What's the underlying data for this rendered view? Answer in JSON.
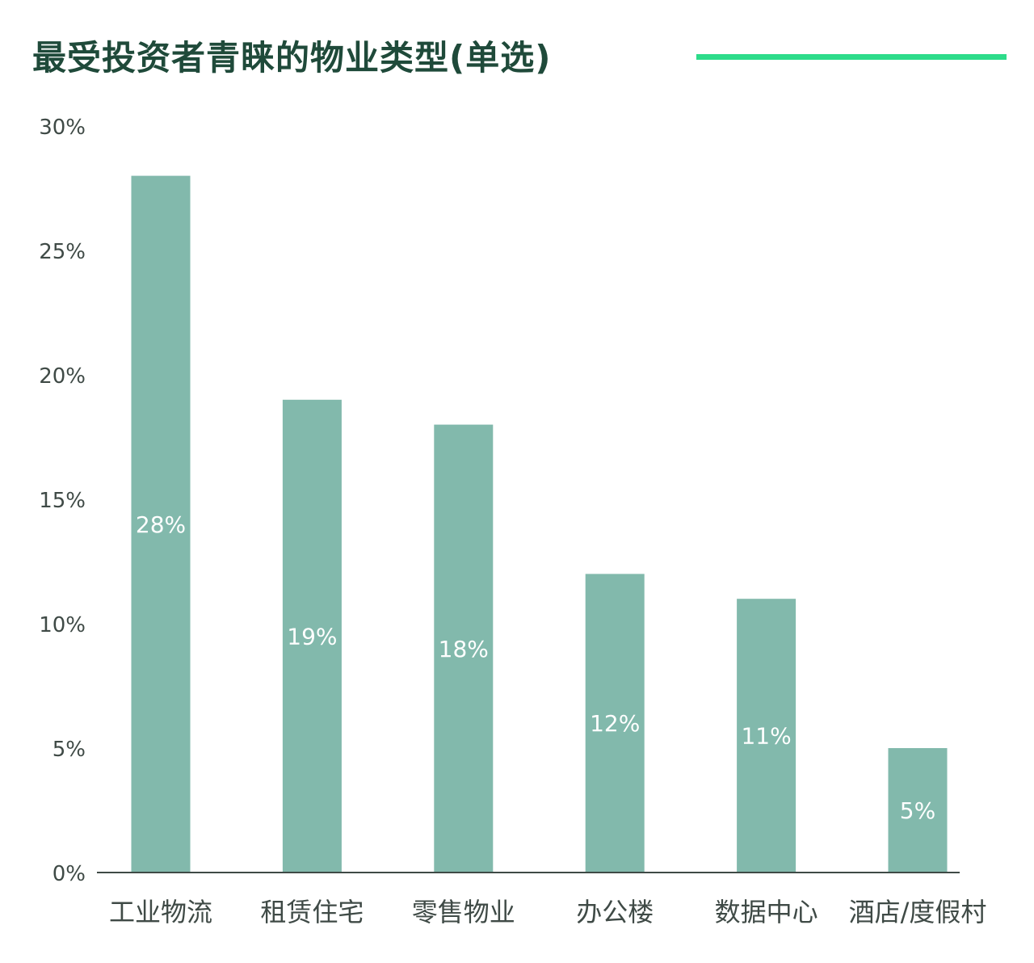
{
  "chart_data": {
    "type": "bar",
    "title": "最受投资者青睐的物业类型(单选)",
    "categories": [
      "工业物流",
      "租赁住宅",
      "零售物业",
      "办公楼",
      "数据中心",
      "酒店/度假村"
    ],
    "values": [
      28,
      19,
      18,
      12,
      11,
      5
    ],
    "data_labels": [
      "28%",
      "19%",
      "18%",
      "12%",
      "11%",
      "5%"
    ],
    "ylim": [
      0,
      30
    ],
    "yticks": [
      0,
      5,
      10,
      15,
      20,
      25,
      30
    ],
    "ytick_labels": [
      "0%",
      "5%",
      "10%",
      "15%",
      "20%",
      "25%",
      "30%"
    ],
    "grid": false,
    "legend": "none"
  },
  "colors": {
    "bar": "#82b9ac",
    "title_text": "#1f4a3a",
    "title_rule": "#2ddc8a",
    "axis": "#3f4a46",
    "label_text": "#3f4a46",
    "data_label_text": "#ffffff"
  }
}
